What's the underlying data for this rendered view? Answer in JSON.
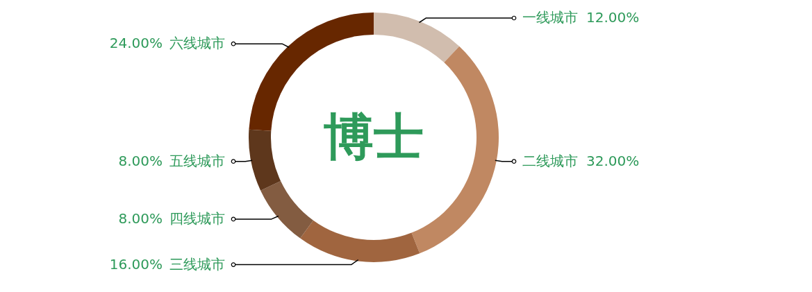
{
  "chart_data": {
    "type": "donut",
    "title": "博士",
    "categories": [
      "一线城市",
      "二线城市",
      "三线城市",
      "四线城市",
      "五线城市",
      "六线城市"
    ],
    "values": [
      12,
      32,
      16,
      8,
      8,
      24
    ],
    "value_labels": [
      "12.00%",
      "32.00%",
      "16.00%",
      "8.00%",
      "8.00%",
      "24.00%"
    ],
    "colors": [
      "#d1bdae",
      "#c08862",
      "#a0653f",
      "#835c41",
      "#5e371c",
      "#672700"
    ]
  }
}
